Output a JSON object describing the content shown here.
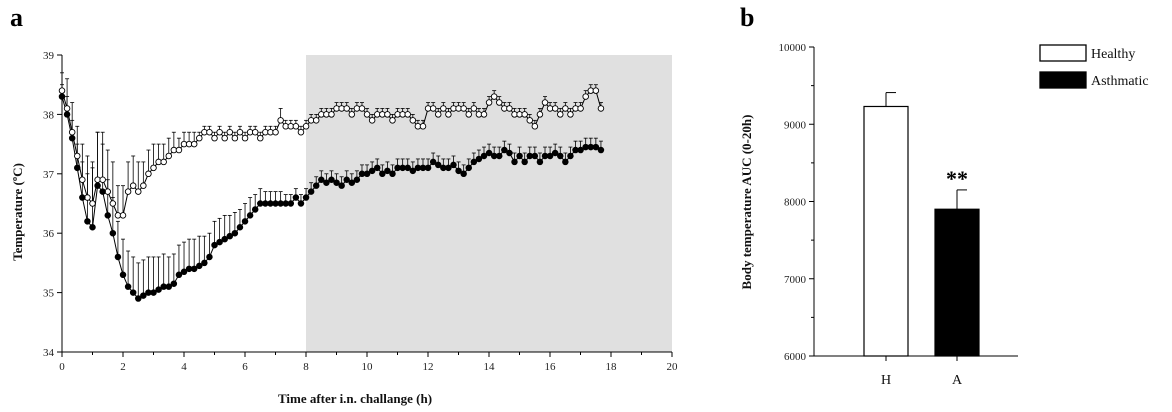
{
  "chart_data": [
    {
      "panel": "a",
      "type": "line",
      "xlabel": "Time after i.n. challange (h)",
      "ylabel": "Temperature (ºC)",
      "xlim": [
        0,
        20
      ],
      "ylim": [
        34,
        39
      ],
      "xticks": [
        0,
        2,
        4,
        6,
        8,
        10,
        12,
        14,
        16,
        18,
        20
      ],
      "yticks": [
        34,
        35,
        36,
        37,
        38,
        39
      ],
      "shaded_region": [
        8,
        20
      ],
      "x_step_hours": 0.1667,
      "series": [
        {
          "name": "Healthy",
          "marker": "open-circle",
          "values": [
            38.4,
            38.1,
            37.7,
            37.3,
            36.9,
            36.6,
            36.5,
            36.9,
            36.9,
            36.7,
            36.5,
            36.3,
            36.3,
            36.7,
            36.8,
            36.7,
            36.8,
            37.0,
            37.1,
            37.2,
            37.2,
            37.3,
            37.4,
            37.4,
            37.5,
            37.5,
            37.5,
            37.6,
            37.7,
            37.7,
            37.6,
            37.7,
            37.6,
            37.7,
            37.6,
            37.7,
            37.6,
            37.7,
            37.7,
            37.6,
            37.7,
            37.7,
            37.7,
            37.9,
            37.8,
            37.8,
            37.8,
            37.7,
            37.8,
            37.9,
            37.9,
            38.0,
            38.0,
            38.0,
            38.1,
            38.1,
            38.1,
            38.0,
            38.1,
            38.1,
            38.0,
            37.9,
            38.0,
            38.0,
            38.0,
            37.9,
            38.0,
            38.0,
            38.0,
            37.9,
            37.8,
            37.8,
            38.1,
            38.1,
            38.0,
            38.1,
            38.0,
            38.1,
            38.1,
            38.1,
            38.0,
            38.1,
            38.0,
            38.0,
            38.2,
            38.3,
            38.2,
            38.1,
            38.1,
            38.0,
            38.0,
            38.0,
            37.9,
            37.8,
            38.0,
            38.2,
            38.1,
            38.1,
            38.0,
            38.1,
            38.0,
            38.1,
            38.1,
            38.3,
            38.4,
            38.4,
            38.1
          ],
          "errors": [
            0.3,
            0.5,
            0.5,
            0.5,
            0.6,
            0.7,
            0.7,
            0.8,
            0.8,
            0.7,
            0.7,
            0.5,
            0.5,
            0.5,
            0.5,
            0.5,
            0.4,
            0.4,
            0.4,
            0.3,
            0.3,
            0.3,
            0.3,
            0.2,
            0.2,
            0.2,
            0.2,
            0.1,
            0.1,
            0.1,
            0.1,
            0.1,
            0.1,
            0.1,
            0.1,
            0.1,
            0.1,
            0.1,
            0.1,
            0.1,
            0.1,
            0.1,
            0.1,
            0.2,
            0.1,
            0.1,
            0.1,
            0.1,
            0.1,
            0.1,
            0.1,
            0.1,
            0.1,
            0.1,
            0.1,
            0.1,
            0.1,
            0.1,
            0.1,
            0.1,
            0.1,
            0.1,
            0.1,
            0.1,
            0.1,
            0.1,
            0.1,
            0.1,
            0.1,
            0.1,
            0.1,
            0.1,
            0.1,
            0.1,
            0.1,
            0.1,
            0.1,
            0.1,
            0.1,
            0.1,
            0.1,
            0.1,
            0.1,
            0.1,
            0.1,
            0.1,
            0.1,
            0.1,
            0.1,
            0.1,
            0.1,
            0.1,
            0.1,
            0.1,
            0.1,
            0.1,
            0.1,
            0.1,
            0.1,
            0.1,
            0.1,
            0.1,
            0.1,
            0.1,
            0.1,
            0.1,
            0.1
          ]
        },
        {
          "name": "Asthmatic",
          "marker": "filled-circle",
          "values": [
            38.3,
            38.0,
            37.6,
            37.1,
            36.6,
            36.2,
            36.1,
            36.8,
            36.7,
            36.3,
            36.0,
            35.6,
            35.3,
            35.1,
            35.0,
            34.9,
            34.95,
            35.0,
            35.0,
            35.05,
            35.1,
            35.1,
            35.15,
            35.3,
            35.35,
            35.4,
            35.4,
            35.45,
            35.5,
            35.6,
            35.8,
            35.85,
            35.9,
            35.95,
            36.0,
            36.1,
            36.2,
            36.3,
            36.4,
            36.5,
            36.5,
            36.5,
            36.5,
            36.5,
            36.5,
            36.5,
            36.6,
            36.5,
            36.6,
            36.7,
            36.8,
            36.9,
            36.85,
            36.9,
            36.85,
            36.8,
            36.9,
            36.85,
            36.9,
            37.0,
            37.0,
            37.05,
            37.1,
            37.0,
            37.05,
            37.0,
            37.1,
            37.1,
            37.1,
            37.05,
            37.1,
            37.1,
            37.1,
            37.2,
            37.15,
            37.1,
            37.1,
            37.15,
            37.05,
            37.0,
            37.1,
            37.2,
            37.25,
            37.3,
            37.35,
            37.3,
            37.3,
            37.4,
            37.35,
            37.2,
            37.3,
            37.2,
            37.3,
            37.3,
            37.2,
            37.3,
            37.3,
            37.35,
            37.3,
            37.2,
            37.3,
            37.4,
            37.4,
            37.45,
            37.45,
            37.45,
            37.4
          ],
          "errors": [
            0.2,
            0.3,
            0.3,
            0.4,
            0.6,
            0.8,
            1.0,
            0.9,
            0.8,
            0.6,
            0.6,
            0.6,
            0.6,
            0.6,
            0.6,
            0.6,
            0.6,
            0.6,
            0.6,
            0.55,
            0.55,
            0.5,
            0.5,
            0.5,
            0.5,
            0.5,
            0.5,
            0.5,
            0.45,
            0.4,
            0.4,
            0.4,
            0.4,
            0.35,
            0.35,
            0.3,
            0.3,
            0.3,
            0.25,
            0.25,
            0.2,
            0.2,
            0.2,
            0.2,
            0.15,
            0.15,
            0.15,
            0.15,
            0.15,
            0.15,
            0.15,
            0.15,
            0.15,
            0.15,
            0.15,
            0.15,
            0.15,
            0.15,
            0.15,
            0.15,
            0.15,
            0.15,
            0.15,
            0.15,
            0.15,
            0.15,
            0.15,
            0.15,
            0.15,
            0.15,
            0.15,
            0.15,
            0.15,
            0.15,
            0.15,
            0.15,
            0.15,
            0.15,
            0.15,
            0.15,
            0.15,
            0.15,
            0.15,
            0.15,
            0.15,
            0.15,
            0.15,
            0.15,
            0.15,
            0.15,
            0.15,
            0.15,
            0.15,
            0.15,
            0.15,
            0.15,
            0.15,
            0.15,
            0.15,
            0.15,
            0.15,
            0.15,
            0.15,
            0.15,
            0.15,
            0.15,
            0.15
          ]
        }
      ]
    },
    {
      "panel": "b",
      "type": "bar",
      "ylabel": "Body temperature AUC (0-20h)",
      "ylim": [
        6000,
        10000
      ],
      "yticks": [
        6000,
        7000,
        8000,
        9000,
        10000
      ],
      "categories": [
        "H",
        "A"
      ],
      "values": [
        9230,
        7900
      ],
      "errors": [
        180,
        250
      ],
      "colors": [
        "#ffffff",
        "#000000"
      ],
      "significance": [
        "",
        "**"
      ],
      "legend": [
        {
          "label": "Healthy",
          "color": "#ffffff"
        },
        {
          "label": "Asthmatic",
          "color": "#000000"
        }
      ],
      "legend_position": "right"
    }
  ]
}
